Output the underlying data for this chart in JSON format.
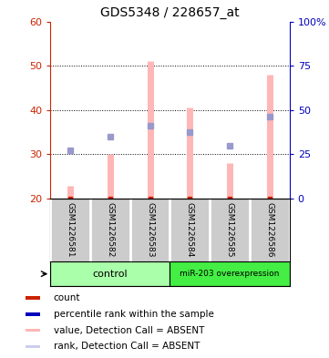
{
  "title": "GDS5348 / 228657_at",
  "samples": [
    "GSM1226581",
    "GSM1226582",
    "GSM1226583",
    "GSM1226584",
    "GSM1226585",
    "GSM1226586"
  ],
  "ylim_left": [
    20,
    60
  ],
  "ylim_right": [
    0,
    100
  ],
  "yticks_left": [
    20,
    30,
    40,
    50,
    60
  ],
  "yticks_right": [
    0,
    25,
    50,
    75,
    100
  ],
  "ytick_labels_right": [
    "0",
    "25",
    "50",
    "75",
    "100%"
  ],
  "pink_bars_bottom": [
    20,
    20,
    20,
    20,
    20,
    20
  ],
  "pink_bars_top": [
    23,
    30,
    51,
    40.5,
    28,
    48
  ],
  "blue_squares_y": [
    31,
    34,
    36.5,
    35,
    32,
    38.5
  ],
  "red_square_y": [
    20,
    20,
    20,
    20,
    20,
    20
  ],
  "pink_bar_color": "#ffb6b6",
  "blue_square_color": "#9999cc",
  "red_square_color": "#cc2200",
  "left_axis_color": "#cc2200",
  "right_axis_color": "#0000bb",
  "bg_plot": "#ffffff",
  "bg_labels": "#cccccc",
  "bg_control": "#aaffaa",
  "bg_overexp": "#44ee44",
  "legend_items": [
    {
      "color": "#cc2200",
      "label": "count"
    },
    {
      "color": "#0000bb",
      "label": "percentile rank within the sample"
    },
    {
      "color": "#ffb6b6",
      "label": "value, Detection Call = ABSENT"
    },
    {
      "color": "#ccccee",
      "label": "rank, Detection Call = ABSENT"
    }
  ]
}
